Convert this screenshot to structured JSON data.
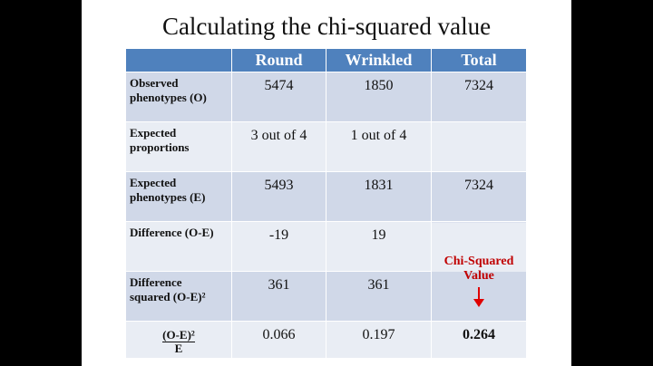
{
  "title": "Calculating the chi-squared value",
  "headers": [
    "",
    "Round",
    "Wrinkled",
    "Total"
  ],
  "rows": [
    {
      "label": "Observed phenotypes (O)",
      "round": "5474",
      "wrinkled": "1850",
      "total": "7324"
    },
    {
      "label": "Expected proportions",
      "round": "3 out of 4",
      "wrinkled": "1 out of 4",
      "total": ""
    },
    {
      "label": "Expected phenotypes (E)",
      "round": "5493",
      "wrinkled": "1831",
      "total": "7324"
    },
    {
      "label": "Difference (O-E)",
      "round": "-19",
      "wrinkled": "19",
      "total": ""
    },
    {
      "label_line1": "Difference",
      "label_line2": "squared  (O-E)²",
      "round": "361",
      "wrinkled": "361",
      "total": ""
    },
    {
      "label_num": "(O-E)²",
      "label_den": "E",
      "round": "0.066",
      "wrinkled": "0.197",
      "total": "0.264"
    }
  ],
  "annotation": {
    "line1": "Chi-Squared",
    "line2": "Value"
  },
  "colors": {
    "header": "#4f81bd",
    "row_odd": "#d0d8e8",
    "row_even": "#e9edf4",
    "highlight": "#e00000"
  }
}
